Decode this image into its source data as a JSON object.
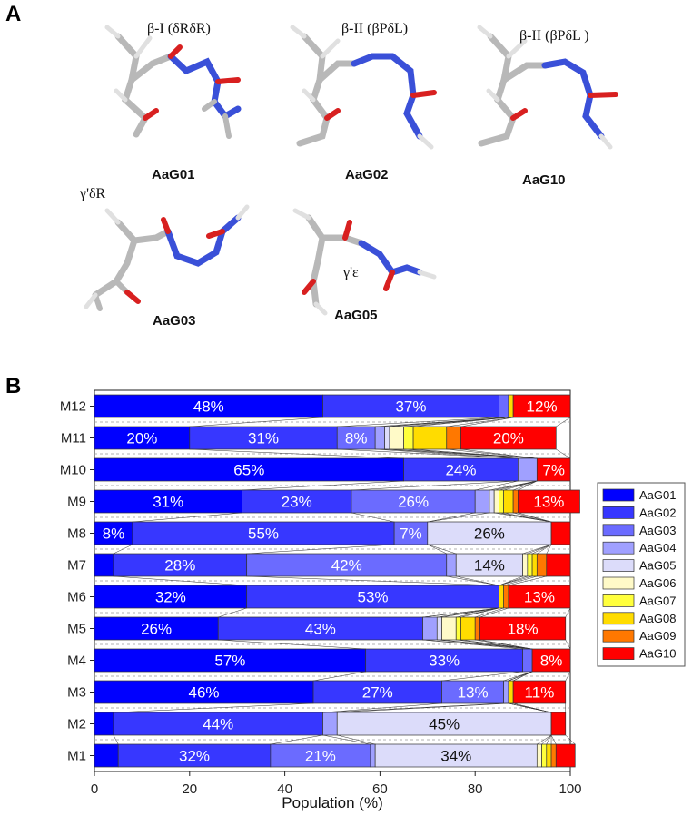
{
  "panels": {
    "a": "A",
    "b": "B"
  },
  "molecules": [
    {
      "name": "AaG01",
      "conformation": "β-I (δRδR)"
    },
    {
      "name": "AaG02",
      "conformation": "β-II (βPδL)"
    },
    {
      "name": "AaG10",
      "conformation": "β-II (βPδL )"
    },
    {
      "name": "AaG03",
      "conformation": "γ'δR"
    },
    {
      "name": "AaG05",
      "conformation": "γ'ε"
    }
  ],
  "colors": {
    "AaG01": "#0000ff",
    "AaG02": "#3737ff",
    "AaG03": "#6b6bff",
    "AaG04": "#a0a0ff",
    "AaG05": "#dcdcfa",
    "AaG06": "#fffac8",
    "AaG07": "#ffff3c",
    "AaG08": "#ffdc00",
    "AaG09": "#ff7800",
    "AaG10": "#ff0000"
  },
  "chart_data": {
    "type": "bar",
    "orientation": "horizontal",
    "stacked": true,
    "xlabel": "Population (%)",
    "xlim": [
      0,
      100
    ],
    "xticks": [
      "0",
      "20",
      "40",
      "60",
      "80",
      "100"
    ],
    "legend_position": "right",
    "categories": [
      "M12",
      "M11",
      "M10",
      "M9",
      "M8",
      "M7",
      "M6",
      "M5",
      "M4",
      "M3",
      "M2",
      "M1"
    ],
    "series": [
      {
        "name": "AaG01",
        "values": [
          48,
          20,
          65,
          31,
          8,
          4,
          32,
          26,
          57,
          46,
          4,
          5
        ]
      },
      {
        "name": "AaG02",
        "values": [
          37,
          31,
          24,
          23,
          55,
          28,
          53,
          43,
          33,
          27,
          44,
          32
        ]
      },
      {
        "name": "AaG03",
        "values": [
          2,
          8,
          0,
          26,
          7,
          42,
          0,
          0,
          2,
          13,
          0,
          21
        ]
      },
      {
        "name": "AaG04",
        "values": [
          0,
          2,
          4,
          3,
          0,
          2,
          0,
          3,
          0,
          1,
          3,
          1
        ]
      },
      {
        "name": "AaG05",
        "values": [
          0,
          1,
          0,
          1,
          26,
          14,
          0,
          1,
          0,
          0,
          45,
          34
        ]
      },
      {
        "name": "AaG06",
        "values": [
          0,
          3,
          0,
          1,
          0,
          1,
          0,
          3,
          0,
          0,
          0,
          1
        ]
      },
      {
        "name": "AaG07",
        "values": [
          0,
          2,
          0,
          1,
          0,
          1,
          0,
          1,
          0,
          0,
          0,
          1
        ]
      },
      {
        "name": "AaG08",
        "values": [
          1,
          7,
          0,
          2,
          0,
          1,
          1,
          3,
          0,
          1,
          0,
          1
        ]
      },
      {
        "name": "AaG09",
        "values": [
          0,
          3,
          0,
          1,
          0,
          2,
          1,
          1,
          0,
          0,
          0,
          1
        ]
      },
      {
        "name": "AaG10",
        "values": [
          12,
          20,
          7,
          13,
          4,
          5,
          13,
          18,
          8,
          11,
          3,
          4
        ]
      }
    ],
    "labels": [
      [
        {
          "s": 0,
          "t": "48%"
        },
        {
          "s": 1,
          "t": "37%"
        },
        {
          "s": 9,
          "t": "12%"
        }
      ],
      [
        {
          "s": 0,
          "t": "20%"
        },
        {
          "s": 1,
          "t": "31%"
        },
        {
          "s": 2,
          "t": "8%"
        },
        {
          "s": 9,
          "t": "20%"
        }
      ],
      [
        {
          "s": 0,
          "t": "65%"
        },
        {
          "s": 1,
          "t": "24%"
        },
        {
          "s": 9,
          "t": "7%"
        }
      ],
      [
        {
          "s": 0,
          "t": "31%"
        },
        {
          "s": 1,
          "t": "23%"
        },
        {
          "s": 2,
          "t": "26%"
        },
        {
          "s": 9,
          "t": "13%"
        }
      ],
      [
        {
          "s": 0,
          "t": "8%"
        },
        {
          "s": 1,
          "t": "55%"
        },
        {
          "s": 2,
          "t": "7%"
        },
        {
          "s": 4,
          "t": "26%"
        }
      ],
      [
        {
          "s": 1,
          "t": "28%"
        },
        {
          "s": 2,
          "t": "42%"
        },
        {
          "s": 4,
          "t": "14%"
        }
      ],
      [
        {
          "s": 0,
          "t": "32%"
        },
        {
          "s": 1,
          "t": "53%"
        },
        {
          "s": 9,
          "t": "13%"
        }
      ],
      [
        {
          "s": 0,
          "t": "26%"
        },
        {
          "s": 1,
          "t": "43%"
        },
        {
          "s": 9,
          "t": "18%"
        }
      ],
      [
        {
          "s": 0,
          "t": "57%"
        },
        {
          "s": 1,
          "t": "33%"
        },
        {
          "s": 9,
          "t": "8%"
        }
      ],
      [
        {
          "s": 0,
          "t": "46%"
        },
        {
          "s": 1,
          "t": "27%"
        },
        {
          "s": 2,
          "t": "13%"
        },
        {
          "s": 9,
          "t": "11%"
        }
      ],
      [
        {
          "s": 1,
          "t": "44%"
        },
        {
          "s": 4,
          "t": "45%"
        }
      ],
      [
        {
          "s": 1,
          "t": "32%"
        },
        {
          "s": 2,
          "t": "21%"
        },
        {
          "s": 4,
          "t": "34%"
        }
      ]
    ]
  }
}
